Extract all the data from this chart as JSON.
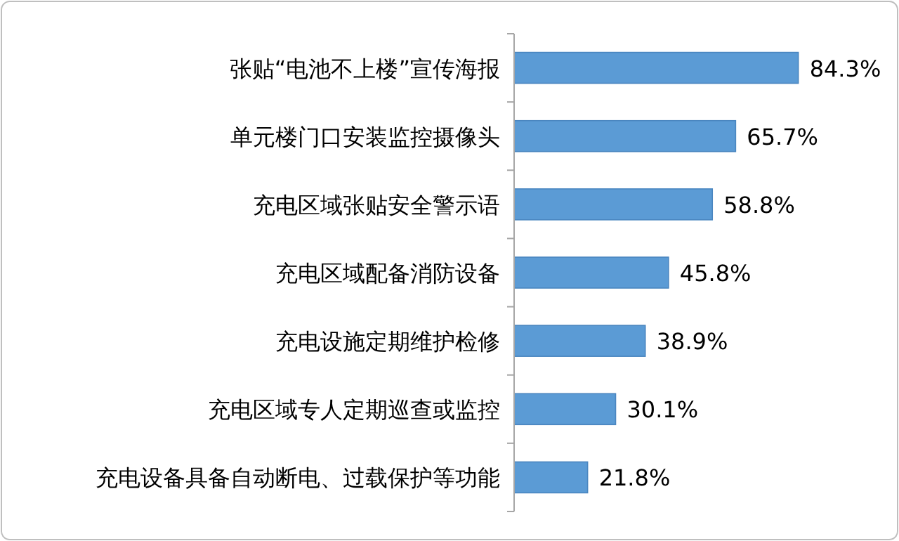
{
  "chart_data": {
    "type": "bar",
    "orientation": "horizontal",
    "categories": [
      "张贴“电池不上楼”宣传海报",
      "单元楼门口安装监控摄像头",
      "充电区域张贴安全警示语",
      "充电区域配备消防设备",
      "充电设施定期维护检修",
      "充电区域专人定期巡查或监控",
      "充电设备具备自动断电、过载保护等功能"
    ],
    "values": [
      84.3,
      65.7,
      58.8,
      45.8,
      38.9,
      30.1,
      21.8
    ],
    "value_labels": [
      "84.3%",
      "65.7%",
      "58.8%",
      "45.8%",
      "38.9%",
      "30.1%",
      "21.8%"
    ],
    "color": "#5b9bd5"
  }
}
